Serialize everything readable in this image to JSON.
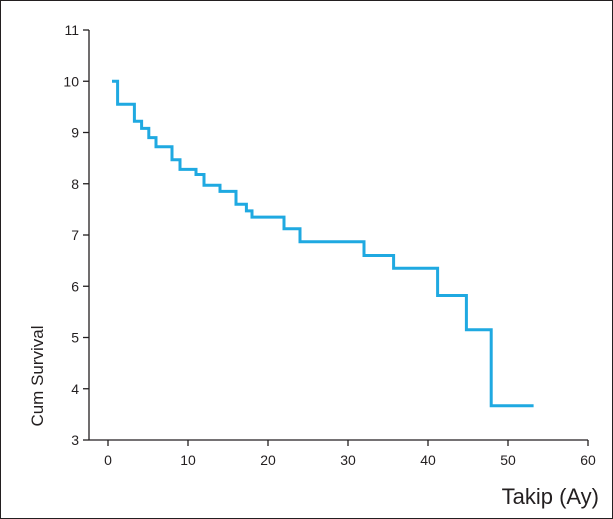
{
  "chart_data": {
    "type": "line",
    "step": true,
    "title": "",
    "xlabel": "Takip (Ay)",
    "ylabel": "Cum Survival",
    "xlim": [
      0,
      60
    ],
    "ylim": [
      3,
      11
    ],
    "x_ticks": [
      0,
      10,
      20,
      30,
      40,
      50,
      60
    ],
    "y_ticks": [
      3,
      4,
      5,
      6,
      7,
      8,
      9,
      10,
      11
    ],
    "grid": false,
    "legend": "none",
    "line_color": "#1fa9e1",
    "axis_color": "#231f20",
    "series": [
      {
        "x": [
          0.5,
          1.2,
          3.3,
          4.2,
          5.1,
          6.0,
          8.0,
          9.0,
          11.0,
          12.0,
          14.0,
          16.0,
          17.3,
          18.0,
          22.0,
          24.0,
          32.0,
          35.7,
          41.2,
          44.8,
          47.9,
          53.2
        ],
        "y": [
          10.0,
          9.55,
          9.22,
          9.08,
          8.9,
          8.72,
          8.47,
          8.28,
          8.18,
          7.97,
          7.85,
          7.6,
          7.47,
          7.35,
          7.12,
          6.87,
          6.6,
          6.35,
          5.82,
          5.15,
          3.67,
          3.67
        ]
      }
    ]
  }
}
